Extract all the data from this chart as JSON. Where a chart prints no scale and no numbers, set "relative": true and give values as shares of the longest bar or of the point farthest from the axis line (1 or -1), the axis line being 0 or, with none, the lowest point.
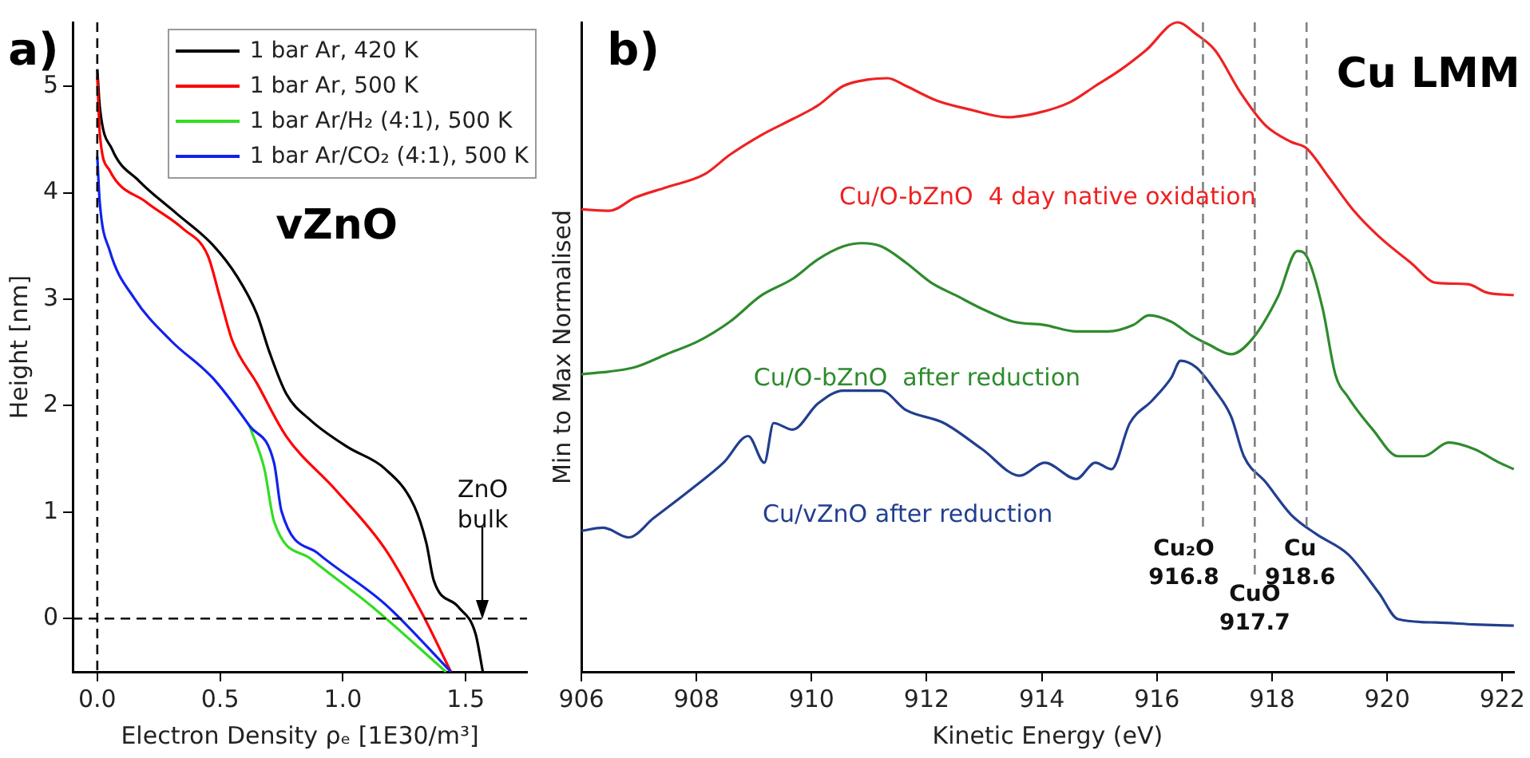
{
  "chart_data": [
    {
      "type": "line",
      "xlabel": "Electron Density ρₑ [1E30/m³]",
      "ylabel": "Height [nm]",
      "xlim": [
        -0.1,
        1.75
      ],
      "ylim": [
        -0.5,
        5.6
      ],
      "xticks": [
        {
          "value": 0,
          "label": "0.0"
        },
        0.5,
        {
          "value": 1,
          "label": "1.0"
        },
        1.5
      ],
      "yticks": [
        0,
        1,
        2,
        3,
        4,
        5
      ],
      "grid": false,
      "legend": "top right",
      "marker": "none",
      "line_style": "solid",
      "annotations": [
        "a)",
        "vZnO",
        {
          "text": "ZnO bulk",
          "x": 1.57,
          "y": 0
        }
      ],
      "ref_lines": [
        {
          "axis": "x",
          "value": 0,
          "color": "#000000",
          "line_style": "dashed"
        },
        {
          "axis": "y",
          "value": 0,
          "color": "#000000",
          "line_style": "dashed"
        }
      ],
      "series": [
        {
          "name": "1 bar Ar, 420 K",
          "color": "#000000",
          "x": [
            0,
            0.01,
            0.06,
            0.17,
            0.32,
            0.47,
            0.57,
            0.65,
            0.7,
            0.77,
            0.87,
            1.02,
            1.17,
            1.29,
            1.34,
            1.37,
            1.47,
            1.54,
            1.57
          ],
          "values": [
            5.16,
            4.81,
            4.41,
            4.11,
            3.81,
            3.51,
            3.21,
            2.86,
            2.51,
            2.11,
            1.86,
            1.61,
            1.41,
            1.06,
            0.71,
            0.36,
            0.11,
            -0.14,
            -0.5
          ]
        },
        {
          "name": "1 bar Ar, 500 K",
          "color": "#ff0000",
          "x": [
            0,
            0.01,
            0.05,
            0.2,
            0.35,
            0.45,
            0.5,
            0.55,
            0.65,
            0.77,
            0.97,
            1.17,
            1.32,
            1.44
          ],
          "values": [
            5.09,
            4.56,
            4.21,
            3.91,
            3.66,
            3.41,
            3.01,
            2.61,
            2.21,
            1.71,
            1.21,
            0.66,
            0.06,
            -0.5
          ]
        },
        {
          "name": "1 bar Ar/H₂ (4:1), 500 K",
          "color": "#33dd22",
          "x": [
            0.62,
            0.68,
            0.72,
            0.87,
            1.12,
            1.42
          ],
          "values": [
            1.81,
            1.41,
            0.91,
            0.56,
            0.11,
            -0.5
          ]
        },
        {
          "name": "1 bar Ar/CO₂ (4:1), 500 K",
          "color": "#1122ee",
          "x": [
            0,
            0.01,
            0.05,
            0.15,
            0.3,
            0.47,
            0.62,
            0.72,
            0.75,
            0.9,
            1.17,
            1.44
          ],
          "values": [
            4.34,
            3.91,
            3.46,
            3.01,
            2.61,
            2.26,
            1.81,
            1.46,
            1.01,
            0.61,
            0.14,
            -0.5
          ]
        }
      ]
    },
    {
      "type": "line",
      "relative": true,
      "xlabel": "Kinetic Energy (eV)",
      "ylabel": "Min to Max Normalised",
      "xlim": [
        906,
        922.2
      ],
      "xticks": [
        906,
        908,
        910,
        912,
        914,
        916,
        918,
        920,
        922
      ],
      "grid": false,
      "marker": "none",
      "line_style": "solid",
      "annotations": [
        "b)",
        "Cu LMM"
      ],
      "ref_lines": [
        {
          "axis": "x",
          "value": 916.8,
          "label": "Cu₂O 916.8",
          "color": "#808080",
          "line_style": "dashed"
        },
        {
          "axis": "x",
          "value": 917.7,
          "label": "CuO 917.7",
          "color": "#808080",
          "line_style": "dashed"
        },
        {
          "axis": "x",
          "value": 918.6,
          "label": "Cu 918.6",
          "color": "#808080",
          "line_style": "dashed"
        }
      ],
      "series": [
        {
          "name": "Cu/O-bZnO  4 day native oxidation",
          "color": "#ee2222",
          "x": [
            906,
            906.49,
            906.93,
            907.48,
            908.14,
            908.58,
            909.12,
            909.67,
            910.11,
            910.55,
            910.99,
            911.32,
            911.64,
            912.19,
            912.74,
            913.4,
            913.95,
            914.49,
            914.93,
            915.37,
            915.81,
            916.36,
            916.68,
            917.01,
            917.45,
            917.89,
            918.33,
            918.6,
            918.99,
            919.42,
            919.86,
            920.41,
            920.85,
            921.4,
            921.73,
            922.2
          ],
          "values": [
            0.712,
            0.71,
            0.73,
            0.746,
            0.766,
            0.796,
            0.826,
            0.851,
            0.872,
            0.902,
            0.912,
            0.914,
            0.902,
            0.879,
            0.866,
            0.854,
            0.861,
            0.877,
            0.902,
            0.927,
            0.957,
            1,
            0.982,
            0.957,
            0.892,
            0.841,
            0.816,
            0.806,
            0.761,
            0.71,
            0.67,
            0.63,
            0.599,
            0.597,
            0.584,
            0.58
          ]
        },
        {
          "name": "Cu/O-bZnO  after reduction",
          "color": "#2e8b2e",
          "x": [
            906,
            906.93,
            907.48,
            908.03,
            908.58,
            909.12,
            909.67,
            910.11,
            910.55,
            910.88,
            911.21,
            911.64,
            912.08,
            912.52,
            912.96,
            913.51,
            914.05,
            914.6,
            915.15,
            915.59,
            915.86,
            916.25,
            916.58,
            916.9,
            917.29,
            917.67,
            918.11,
            918.44,
            918.6,
            918.88,
            919.1,
            919.32,
            919.75,
            920.19,
            920.63,
            921.07,
            921.51,
            921.95,
            922.2
          ],
          "values": [
            0.458,
            0.469,
            0.489,
            0.509,
            0.539,
            0.579,
            0.605,
            0.635,
            0.655,
            0.66,
            0.655,
            0.63,
            0.599,
            0.579,
            0.559,
            0.539,
            0.534,
            0.524,
            0.524,
            0.534,
            0.549,
            0.539,
            0.519,
            0.504,
            0.489,
            0.514,
            0.579,
            0.648,
            0.64,
            0.559,
            0.458,
            0.423,
            0.373,
            0.332,
            0.332,
            0.353,
            0.343,
            0.322,
            0.312
          ]
        },
        {
          "name": "Cu/vZnO after reduction",
          "color": "#223f8f",
          "x": [
            906,
            906.38,
            906.82,
            907.26,
            907.92,
            908.47,
            908.9,
            909.18,
            909.34,
            909.67,
            910.11,
            910.55,
            911.21,
            911.64,
            912.3,
            912.96,
            913.62,
            914.05,
            914.6,
            914.93,
            915.21,
            915.53,
            915.92,
            916.25,
            916.41,
            916.68,
            917.01,
            917.29,
            917.51,
            917.89,
            918.33,
            918.77,
            919.32,
            919.86,
            920.19,
            920.85,
            921.51,
            922.2
          ],
          "values": [
            0.217,
            0.222,
            0.207,
            0.237,
            0.282,
            0.322,
            0.363,
            0.322,
            0.383,
            0.373,
            0.413,
            0.433,
            0.433,
            0.403,
            0.383,
            0.343,
            0.302,
            0.322,
            0.297,
            0.322,
            0.312,
            0.383,
            0.418,
            0.453,
            0.479,
            0.469,
            0.433,
            0.393,
            0.332,
            0.292,
            0.242,
            0.212,
            0.181,
            0.121,
            0.081,
            0.076,
            0.073,
            0.071
          ]
        }
      ]
    }
  ]
}
